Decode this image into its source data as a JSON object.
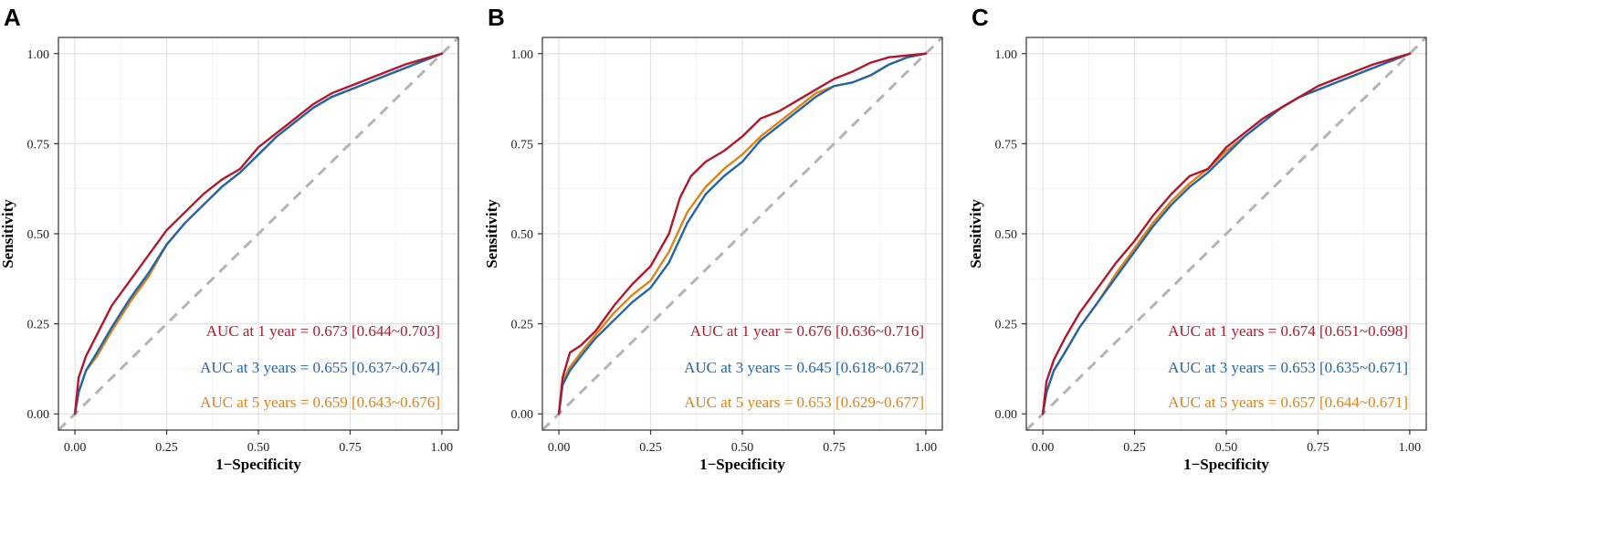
{
  "chart_data": [
    {
      "type": "line",
      "panel": "A",
      "xlabel": "1−Specificity",
      "ylabel": "Sensitivity",
      "xlim": [
        0,
        1
      ],
      "ylim": [
        0,
        1
      ],
      "xticks": [
        "0.00",
        "0.25",
        "0.50",
        "0.75",
        "1.00"
      ],
      "yticks": [
        "0.00",
        "0.25",
        "0.50",
        "0.75",
        "1.00"
      ],
      "series": [
        {
          "name": "1 year",
          "color": "#b2182b",
          "label": "AUC at 1 year  = 0.673 [0.644~0.703]",
          "points": [
            [
              0,
              0
            ],
            [
              0.01,
              0.1
            ],
            [
              0.03,
              0.16
            ],
            [
              0.06,
              0.22
            ],
            [
              0.1,
              0.3
            ],
            [
              0.15,
              0.37
            ],
            [
              0.2,
              0.44
            ],
            [
              0.25,
              0.51
            ],
            [
              0.3,
              0.56
            ],
            [
              0.35,
              0.61
            ],
            [
              0.4,
              0.65
            ],
            [
              0.45,
              0.68
            ],
            [
              0.5,
              0.74
            ],
            [
              0.55,
              0.78
            ],
            [
              0.6,
              0.82
            ],
            [
              0.65,
              0.86
            ],
            [
              0.7,
              0.89
            ],
            [
              0.75,
              0.91
            ],
            [
              0.8,
              0.93
            ],
            [
              0.85,
              0.95
            ],
            [
              0.9,
              0.97
            ],
            [
              0.95,
              0.985
            ],
            [
              1,
              1
            ]
          ]
        },
        {
          "name": "3 years",
          "color": "#2166ac",
          "label": "AUC at 3 years = 0.655 [0.637~0.674]",
          "points": [
            [
              0,
              0
            ],
            [
              0.01,
              0.06
            ],
            [
              0.03,
              0.12
            ],
            [
              0.06,
              0.17
            ],
            [
              0.1,
              0.24
            ],
            [
              0.15,
              0.32
            ],
            [
              0.2,
              0.39
            ],
            [
              0.25,
              0.47
            ],
            [
              0.3,
              0.53
            ],
            [
              0.35,
              0.58
            ],
            [
              0.4,
              0.63
            ],
            [
              0.45,
              0.67
            ],
            [
              0.5,
              0.72
            ],
            [
              0.55,
              0.77
            ],
            [
              0.6,
              0.81
            ],
            [
              0.65,
              0.85
            ],
            [
              0.7,
              0.88
            ],
            [
              0.75,
              0.9
            ],
            [
              0.8,
              0.92
            ],
            [
              0.85,
              0.94
            ],
            [
              0.9,
              0.96
            ],
            [
              0.95,
              0.98
            ],
            [
              1,
              1
            ]
          ]
        },
        {
          "name": "5 years",
          "color": "#e08214",
          "label": "AUC at 5 years = 0.659 [0.643~0.676]",
          "points": [
            [
              0,
              0
            ],
            [
              0.01,
              0.06
            ],
            [
              0.03,
              0.12
            ],
            [
              0.06,
              0.16
            ],
            [
              0.1,
              0.23
            ],
            [
              0.15,
              0.31
            ],
            [
              0.2,
              0.38
            ],
            [
              0.25,
              0.47
            ],
            [
              0.3,
              0.53
            ],
            [
              0.35,
              0.58
            ],
            [
              0.4,
              0.63
            ],
            [
              0.45,
              0.67
            ],
            [
              0.5,
              0.72
            ],
            [
              0.55,
              0.77
            ],
            [
              0.6,
              0.81
            ],
            [
              0.65,
              0.85
            ],
            [
              0.7,
              0.88
            ],
            [
              0.75,
              0.9
            ],
            [
              0.8,
              0.92
            ],
            [
              0.85,
              0.94
            ],
            [
              0.9,
              0.96
            ],
            [
              0.95,
              0.98
            ],
            [
              1,
              1
            ]
          ]
        }
      ]
    },
    {
      "type": "line",
      "panel": "B",
      "xlabel": "1−Specificity",
      "ylabel": "Sensitivity",
      "xlim": [
        0,
        1
      ],
      "ylim": [
        0,
        1
      ],
      "xticks": [
        "0.00",
        "0.25",
        "0.50",
        "0.75",
        "1.00"
      ],
      "yticks": [
        "0.00",
        "0.25",
        "0.50",
        "0.75",
        "1.00"
      ],
      "series": [
        {
          "name": "1 year",
          "color": "#b2182b",
          "label": "AUC at 1 year  = 0.676 [0.636~0.716]",
          "points": [
            [
              0,
              0
            ],
            [
              0.01,
              0.1
            ],
            [
              0.03,
              0.17
            ],
            [
              0.06,
              0.19
            ],
            [
              0.1,
              0.23
            ],
            [
              0.15,
              0.3
            ],
            [
              0.2,
              0.36
            ],
            [
              0.25,
              0.41
            ],
            [
              0.3,
              0.5
            ],
            [
              0.33,
              0.6
            ],
            [
              0.36,
              0.66
            ],
            [
              0.4,
              0.7
            ],
            [
              0.45,
              0.73
            ],
            [
              0.5,
              0.77
            ],
            [
              0.55,
              0.82
            ],
            [
              0.6,
              0.84
            ],
            [
              0.65,
              0.87
            ],
            [
              0.7,
              0.9
            ],
            [
              0.75,
              0.93
            ],
            [
              0.8,
              0.95
            ],
            [
              0.85,
              0.975
            ],
            [
              0.9,
              0.99
            ],
            [
              1,
              1
            ]
          ]
        },
        {
          "name": "3 years",
          "color": "#2166ac",
          "label": "AUC at 3 years = 0.645 [0.618~0.672]",
          "points": [
            [
              0,
              0
            ],
            [
              0.01,
              0.08
            ],
            [
              0.03,
              0.12
            ],
            [
              0.06,
              0.16
            ],
            [
              0.1,
              0.21
            ],
            [
              0.15,
              0.26
            ],
            [
              0.2,
              0.31
            ],
            [
              0.25,
              0.35
            ],
            [
              0.3,
              0.42
            ],
            [
              0.35,
              0.53
            ],
            [
              0.4,
              0.61
            ],
            [
              0.45,
              0.66
            ],
            [
              0.5,
              0.7
            ],
            [
              0.55,
              0.76
            ],
            [
              0.6,
              0.8
            ],
            [
              0.65,
              0.84
            ],
            [
              0.7,
              0.88
            ],
            [
              0.75,
              0.91
            ],
            [
              0.8,
              0.92
            ],
            [
              0.85,
              0.94
            ],
            [
              0.9,
              0.97
            ],
            [
              0.95,
              0.99
            ],
            [
              1,
              1
            ]
          ]
        },
        {
          "name": "5 years",
          "color": "#e08214",
          "label": "AUC at 5 years = 0.653 [0.629~0.677]",
          "points": [
            [
              0,
              0
            ],
            [
              0.01,
              0.09
            ],
            [
              0.03,
              0.13
            ],
            [
              0.06,
              0.17
            ],
            [
              0.1,
              0.22
            ],
            [
              0.15,
              0.28
            ],
            [
              0.2,
              0.33
            ],
            [
              0.25,
              0.37
            ],
            [
              0.3,
              0.45
            ],
            [
              0.35,
              0.56
            ],
            [
              0.4,
              0.63
            ],
            [
              0.45,
              0.68
            ],
            [
              0.5,
              0.72
            ],
            [
              0.55,
              0.77
            ],
            [
              0.6,
              0.81
            ],
            [
              0.65,
              0.85
            ],
            [
              0.7,
              0.89
            ],
            [
              0.75,
              0.91
            ],
            [
              0.8,
              0.92
            ],
            [
              0.85,
              0.94
            ],
            [
              0.9,
              0.97
            ],
            [
              0.95,
              0.99
            ],
            [
              1,
              1
            ]
          ]
        }
      ]
    },
    {
      "type": "line",
      "panel": "C",
      "xlabel": "1−Specificity",
      "ylabel": "Sensitivity",
      "xlim": [
        0,
        1
      ],
      "ylim": [
        0,
        1
      ],
      "xticks": [
        "0.00",
        "0.25",
        "0.50",
        "0.75",
        "1.00"
      ],
      "yticks": [
        "0.00",
        "0.25",
        "0.50",
        "0.75",
        "1.00"
      ],
      "series": [
        {
          "name": "1 years",
          "color": "#b2182b",
          "label": "AUC at 1 years = 0.674 [0.651~0.698]",
          "points": [
            [
              0,
              0
            ],
            [
              0.01,
              0.09
            ],
            [
              0.03,
              0.15
            ],
            [
              0.06,
              0.21
            ],
            [
              0.1,
              0.28
            ],
            [
              0.15,
              0.35
            ],
            [
              0.2,
              0.42
            ],
            [
              0.25,
              0.48
            ],
            [
              0.3,
              0.55
            ],
            [
              0.35,
              0.61
            ],
            [
              0.4,
              0.66
            ],
            [
              0.45,
              0.68
            ],
            [
              0.5,
              0.74
            ],
            [
              0.55,
              0.78
            ],
            [
              0.6,
              0.82
            ],
            [
              0.65,
              0.85
            ],
            [
              0.7,
              0.88
            ],
            [
              0.75,
              0.91
            ],
            [
              0.8,
              0.93
            ],
            [
              0.85,
              0.95
            ],
            [
              0.9,
              0.97
            ],
            [
              0.95,
              0.985
            ],
            [
              1,
              1
            ]
          ]
        },
        {
          "name": "3 years",
          "color": "#2166ac",
          "label": "AUC at 3 years = 0.653 [0.635~0.671]",
          "points": [
            [
              0,
              0
            ],
            [
              0.01,
              0.06
            ],
            [
              0.03,
              0.12
            ],
            [
              0.06,
              0.17
            ],
            [
              0.1,
              0.24
            ],
            [
              0.15,
              0.31
            ],
            [
              0.2,
              0.38
            ],
            [
              0.25,
              0.45
            ],
            [
              0.3,
              0.52
            ],
            [
              0.35,
              0.58
            ],
            [
              0.4,
              0.63
            ],
            [
              0.45,
              0.67
            ],
            [
              0.5,
              0.72
            ],
            [
              0.55,
              0.77
            ],
            [
              0.6,
              0.81
            ],
            [
              0.65,
              0.85
            ],
            [
              0.7,
              0.88
            ],
            [
              0.75,
              0.9
            ],
            [
              0.8,
              0.92
            ],
            [
              0.85,
              0.94
            ],
            [
              0.9,
              0.96
            ],
            [
              0.95,
              0.98
            ],
            [
              1,
              1
            ]
          ]
        },
        {
          "name": "5 years",
          "color": "#e08214",
          "label": "AUC at 5 years = 0.657 [0.644~0.671]",
          "points": [
            [
              0,
              0
            ],
            [
              0.01,
              0.06
            ],
            [
              0.03,
              0.12
            ],
            [
              0.06,
              0.17
            ],
            [
              0.1,
              0.24
            ],
            [
              0.15,
              0.31
            ],
            [
              0.2,
              0.39
            ],
            [
              0.25,
              0.46
            ],
            [
              0.3,
              0.53
            ],
            [
              0.35,
              0.59
            ],
            [
              0.4,
              0.64
            ],
            [
              0.45,
              0.68
            ],
            [
              0.5,
              0.73
            ],
            [
              0.55,
              0.77
            ],
            [
              0.6,
              0.81
            ],
            [
              0.65,
              0.85
            ],
            [
              0.7,
              0.88
            ],
            [
              0.75,
              0.9
            ],
            [
              0.8,
              0.92
            ],
            [
              0.85,
              0.94
            ],
            [
              0.9,
              0.96
            ],
            [
              0.95,
              0.98
            ],
            [
              1,
              1
            ]
          ]
        }
      ]
    }
  ]
}
